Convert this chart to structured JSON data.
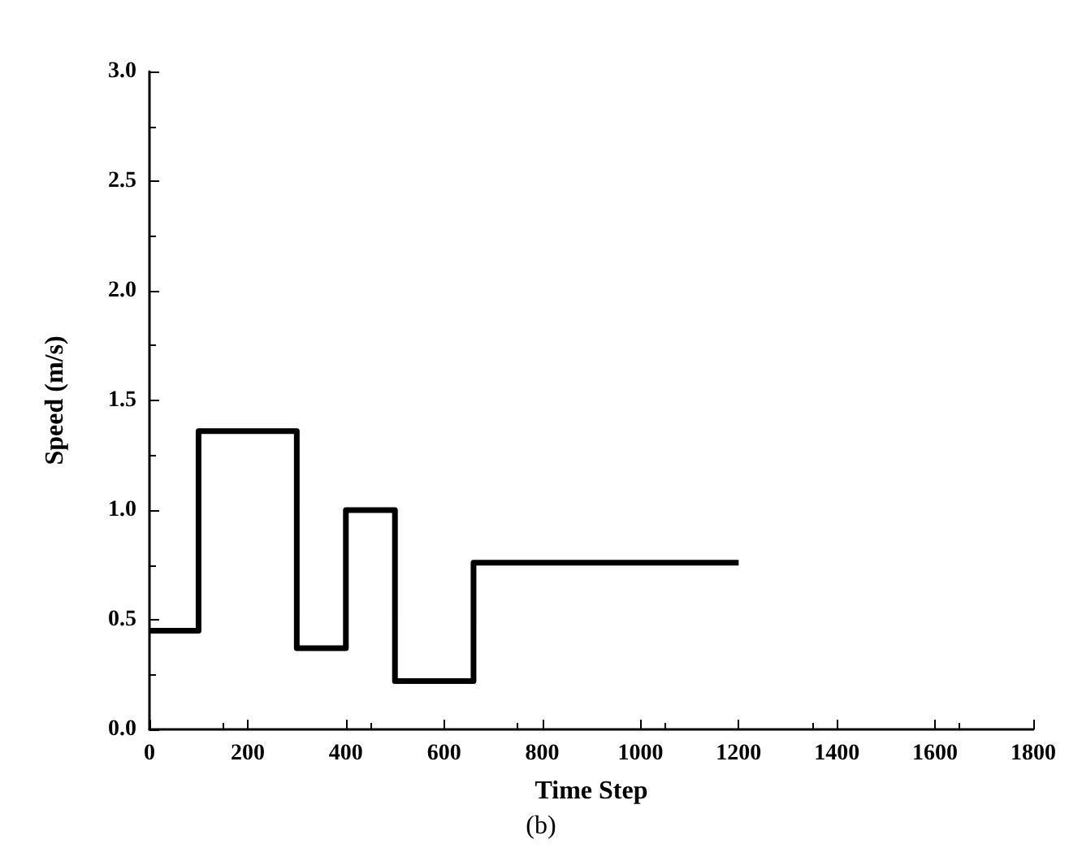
{
  "chart_data": {
    "type": "step",
    "xlabel": "Time Step",
    "ylabel": "Speed (m/s)",
    "annotations": [
      "(b)"
    ],
    "x": [
      0,
      100,
      300,
      400,
      500,
      660,
      1200
    ],
    "series": [
      {
        "color": "#000000",
        "values": [
          0.45,
          1.36,
          0.37,
          1.0,
          0.22,
          0.76,
          0.76
        ]
      }
    ],
    "xlim": [
      0,
      1800
    ],
    "xticks": [
      0,
      200,
      400,
      600,
      800,
      1000,
      1200,
      1400,
      1600,
      1800
    ],
    "ylim": [
      0,
      3
    ],
    "yticks": [
      {
        "value": 0,
        "label": "0.0"
      },
      0.5,
      {
        "value": 1,
        "label": "1.0"
      },
      1.5,
      {
        "value": 2,
        "label": "2.0"
      },
      2.5,
      {
        "value": 3,
        "label": "3.0"
      }
    ],
    "grid": false,
    "marker": "none",
    "line_style": "solid"
  }
}
